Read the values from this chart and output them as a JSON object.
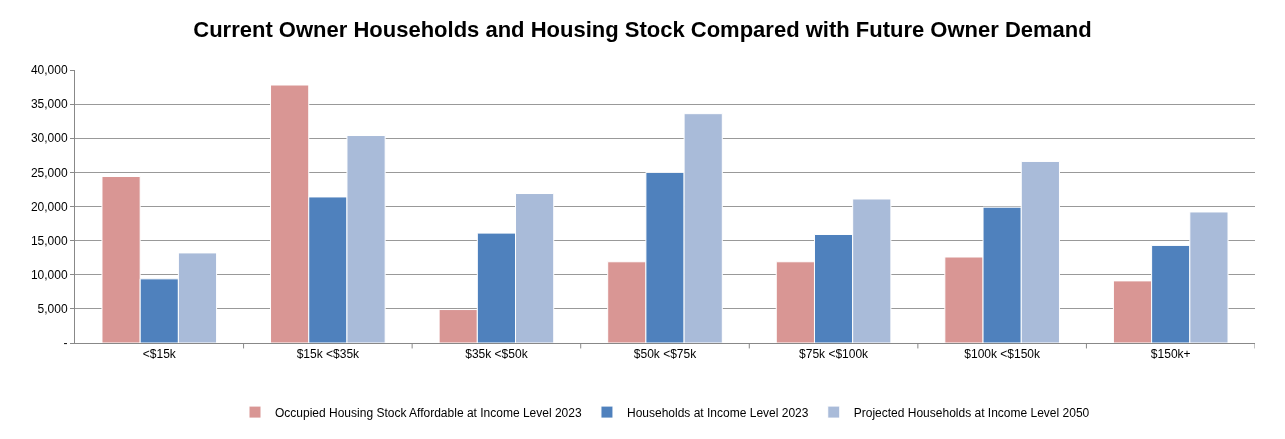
{
  "chart_data": {
    "type": "bar",
    "title": "Current Owner Households and Housing Stock Compared with Future Owner Demand",
    "categories": [
      "<$15k",
      "$15k <$35k",
      "$35k <$50k",
      "$50k <$75k",
      "$75k <$100k",
      "$100k <$150k",
      "$150k+"
    ],
    "series": [
      {
        "name": "Occupied Housing Stock Affordable at Income Level 2023",
        "color": "#d99694",
        "values": [
          24400,
          37800,
          4900,
          11900,
          11900,
          12600,
          9100
        ]
      },
      {
        "name": "Households at Income Level 2023",
        "color": "#4f81bd",
        "values": [
          9400,
          21400,
          16100,
          25000,
          15900,
          19900,
          14300
        ]
      },
      {
        "name": "Projected Households at Income Level 2050",
        "color": "#a9bbd9",
        "values": [
          13200,
          30400,
          21900,
          33600,
          21100,
          26600,
          19200
        ]
      }
    ],
    "ylim": [
      0,
      40000
    ],
    "yticks": [
      {
        "value": 0,
        "label": "-"
      },
      {
        "value": 5000,
        "label": "5,000"
      },
      {
        "value": 10000,
        "label": "10,000"
      },
      {
        "value": 15000,
        "label": "15,000"
      },
      {
        "value": 20000,
        "label": "20,000"
      },
      {
        "value": 25000,
        "label": "25,000"
      },
      {
        "value": 30000,
        "label": "30,000"
      },
      {
        "value": 35000,
        "label": "35,000"
      },
      {
        "value": 40000,
        "label": "40,000"
      }
    ],
    "grid": "y",
    "legend": "bottom"
  }
}
